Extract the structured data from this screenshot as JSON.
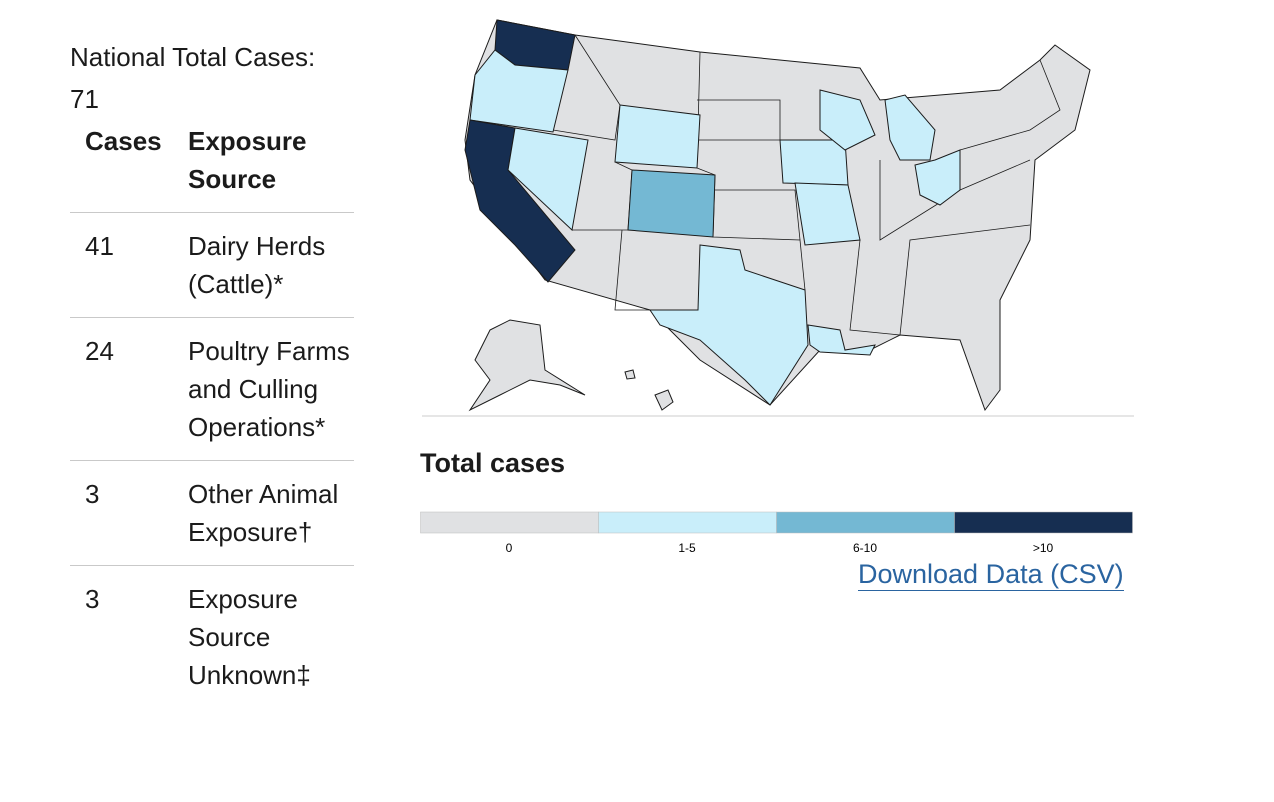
{
  "summary": {
    "label": "National Total Cases:",
    "value": 71
  },
  "table": {
    "headers": [
      "Cases",
      "Exposure Source"
    ],
    "rows": [
      [
        41,
        "Dairy Herds (Cattle)*"
      ],
      [
        24,
        "Poultry Farms and Culling Operations*"
      ],
      [
        3,
        "Other Animal Exposure†"
      ],
      [
        3,
        "Exposure Source Unknown‡"
      ]
    ]
  },
  "legend": {
    "title": "Total cases",
    "items": [
      {
        "label": "0",
        "color": "#e0e1e3"
      },
      {
        "label": "1-5",
        "color": "#c9eefa"
      },
      {
        "label": "6-10",
        "color": "#74b8d3"
      },
      {
        "label": ">10",
        "color": "#162e51"
      }
    ]
  },
  "link": "Download Data (CSV)"
}
